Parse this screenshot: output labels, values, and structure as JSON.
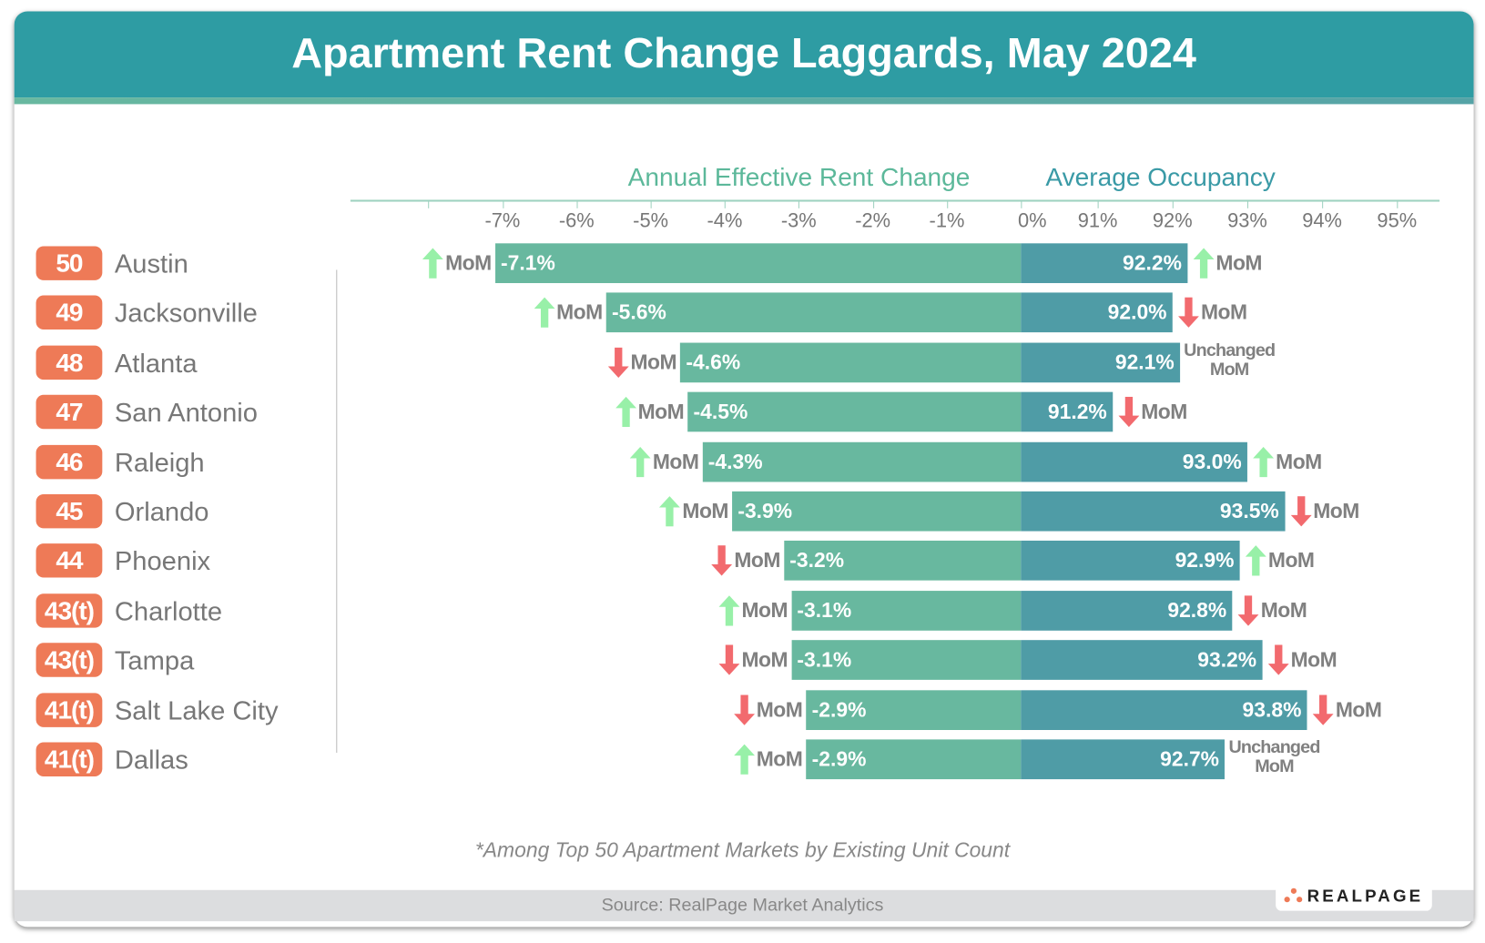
{
  "title": "Apartment Rent Change Laggards, May 2024",
  "colors": {
    "header": "#2e9ca3",
    "rent_bar": "#68b89f",
    "occupancy_bar": "#4f9ca6",
    "rank_badge": "#ee7a57",
    "up_arrow": "#98f0a8",
    "down_arrow": "#f26a6e"
  },
  "chart_data": {
    "type": "bar",
    "orientation": "horizontal",
    "panels": [
      {
        "title": "Annual Effective Rent Change",
        "tick_labels": [
          "-7%",
          "-6%",
          "-5%",
          "-4%",
          "-3%",
          "-2%",
          "-1%",
          "0%"
        ],
        "xlim": [
          -8,
          0
        ]
      },
      {
        "title": "Average Occupancy",
        "tick_labels": [
          "91%",
          "92%",
          "93%",
          "94%",
          "95%"
        ],
        "xlim": [
          90,
          95.5
        ]
      }
    ],
    "rows": [
      {
        "rank": "50",
        "city": "Austin",
        "rent_change": -7.1,
        "rent_label": "-7.1%",
        "rent_mom": "up",
        "occupancy": 92.2,
        "occ_label": "92.2%",
        "occ_mom": "up"
      },
      {
        "rank": "49",
        "city": "Jacksonville",
        "rent_change": -5.6,
        "rent_label": "-5.6%",
        "rent_mom": "up",
        "occupancy": 92.0,
        "occ_label": "92.0%",
        "occ_mom": "down"
      },
      {
        "rank": "48",
        "city": "Atlanta",
        "rent_change": -4.6,
        "rent_label": "-4.6%",
        "rent_mom": "down",
        "occupancy": 92.1,
        "occ_label": "92.1%",
        "occ_mom": "unchanged"
      },
      {
        "rank": "47",
        "city": "San Antonio",
        "rent_change": -4.5,
        "rent_label": "-4.5%",
        "rent_mom": "up",
        "occupancy": 91.2,
        "occ_label": "91.2%",
        "occ_mom": "down"
      },
      {
        "rank": "46",
        "city": "Raleigh",
        "rent_change": -4.3,
        "rent_label": "-4.3%",
        "rent_mom": "up",
        "occupancy": 93.0,
        "occ_label": "93.0%",
        "occ_mom": "up"
      },
      {
        "rank": "45",
        "city": "Orlando",
        "rent_change": -3.9,
        "rent_label": "-3.9%",
        "rent_mom": "up",
        "occupancy": 93.5,
        "occ_label": "93.5%",
        "occ_mom": "down"
      },
      {
        "rank": "44",
        "city": "Phoenix",
        "rent_change": -3.2,
        "rent_label": "-3.2%",
        "rent_mom": "down",
        "occupancy": 92.9,
        "occ_label": "92.9%",
        "occ_mom": "up"
      },
      {
        "rank": "43(t)",
        "city": "Charlotte",
        "rent_change": -3.1,
        "rent_label": "-3.1%",
        "rent_mom": "up",
        "occupancy": 92.8,
        "occ_label": "92.8%",
        "occ_mom": "down"
      },
      {
        "rank": "43(t)",
        "city": "Tampa",
        "rent_change": -3.1,
        "rent_label": "-3.1%",
        "rent_mom": "down",
        "occupancy": 93.2,
        "occ_label": "93.2%",
        "occ_mom": "down"
      },
      {
        "rank": "41(t)",
        "city": "Salt Lake City",
        "rent_change": -2.9,
        "rent_label": "-2.9%",
        "rent_mom": "down",
        "occupancy": 93.8,
        "occ_label": "93.8%",
        "occ_mom": "down"
      },
      {
        "rank": "41(t)",
        "city": "Dallas",
        "rent_change": -2.9,
        "rent_label": "-2.9%",
        "rent_mom": "up",
        "occupancy": 92.7,
        "occ_label": "92.7%",
        "occ_mom": "unchanged"
      }
    ],
    "mom_label": "MoM",
    "unchanged_label": [
      "Unchanged",
      "MoM"
    ]
  },
  "footnote": "*Among Top 50 Apartment Markets by Existing Unit Count",
  "source": "Source: RealPage Market Analytics",
  "logo_text": "REALPAGE"
}
